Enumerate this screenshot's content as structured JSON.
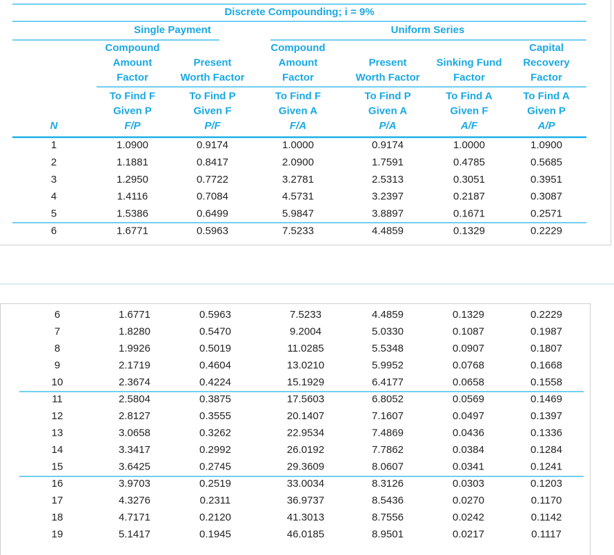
{
  "table": {
    "title": "Discrete Compounding; i = 9%",
    "groups": [
      "Single Payment",
      "Uniform Series"
    ],
    "n_label": "N",
    "columns": [
      {
        "name": [
          "Compound",
          "Amount",
          "Factor"
        ],
        "find": [
          "To Find F",
          "Given P"
        ],
        "symbol": "F/P"
      },
      {
        "name": [
          "Present",
          "Worth Factor"
        ],
        "find": [
          "To Find P",
          "Given F"
        ],
        "symbol": "P/F"
      },
      {
        "name": [
          "Compound",
          "Amount",
          "Factor"
        ],
        "find": [
          "To Find F",
          "Given A"
        ],
        "symbol": "F/A"
      },
      {
        "name": [
          "Present",
          "Worth Factor"
        ],
        "find": [
          "To Find P",
          "Given A"
        ],
        "symbol": "P/A"
      },
      {
        "name": [
          "Sinking Fund",
          "Factor"
        ],
        "find": [
          "To Find A",
          "Given F"
        ],
        "symbol": "A/F"
      },
      {
        "name": [
          "Capital",
          "Recovery",
          "Factor"
        ],
        "find": [
          "To Find A",
          "Given P"
        ],
        "symbol": "A/P"
      }
    ],
    "rows_top": [
      [
        "1",
        "1.0900",
        "0.9174",
        "1.0000",
        "0.9174",
        "1.0000",
        "1.0900"
      ],
      [
        "2",
        "1.1881",
        "0.8417",
        "2.0900",
        "1.7591",
        "0.4785",
        "0.5685"
      ],
      [
        "3",
        "1.2950",
        "0.7722",
        "3.2781",
        "2.5313",
        "0.3051",
        "0.3951"
      ],
      [
        "4",
        "1.4116",
        "0.7084",
        "4.5731",
        "3.2397",
        "0.2187",
        "0.3087"
      ],
      [
        "5",
        "1.5386",
        "0.6499",
        "5.9847",
        "3.8897",
        "0.1671",
        "0.2571"
      ],
      [
        "6",
        "1.6771",
        "0.5963",
        "7.5233",
        "4.4859",
        "0.1329",
        "0.2229"
      ]
    ],
    "rows_bottom": [
      [
        "6",
        "1.6771",
        "0.5963",
        "7.5233",
        "4.4859",
        "0.1329",
        "0.2229"
      ],
      [
        "7",
        "1.8280",
        "0.5470",
        "9.2004",
        "5.0330",
        "0.1087",
        "0.1987"
      ],
      [
        "8",
        "1.9926",
        "0.5019",
        "11.0285",
        "5.5348",
        "0.0907",
        "0.1807"
      ],
      [
        "9",
        "2.1719",
        "0.4604",
        "13.0210",
        "5.9952",
        "0.0768",
        "0.1668"
      ],
      [
        "10",
        "2.3674",
        "0.4224",
        "15.1929",
        "6.4177",
        "0.0658",
        "0.1558"
      ],
      [
        "11",
        "2.5804",
        "0.3875",
        "17.5603",
        "6.8052",
        "0.0569",
        "0.1469"
      ],
      [
        "12",
        "2.8127",
        "0.3555",
        "20.1407",
        "7.1607",
        "0.0497",
        "0.1397"
      ],
      [
        "13",
        "3.0658",
        "0.3262",
        "22.9534",
        "7.4869",
        "0.0436",
        "0.1336"
      ],
      [
        "14",
        "3.3417",
        "0.2992",
        "26.0192",
        "7.7862",
        "0.0384",
        "0.1284"
      ],
      [
        "15",
        "3.6425",
        "0.2745",
        "29.3609",
        "8.0607",
        "0.0341",
        "0.1241"
      ],
      [
        "16",
        "3.9703",
        "0.2519",
        "33.0034",
        "8.3126",
        "0.0303",
        "0.1203"
      ],
      [
        "17",
        "4.3276",
        "0.2311",
        "36.9737",
        "8.5436",
        "0.0270",
        "0.1170"
      ],
      [
        "18",
        "4.7171",
        "0.2120",
        "41.3013",
        "8.7556",
        "0.0242",
        "0.1142"
      ],
      [
        "19",
        "5.1417",
        "0.1945",
        "46.0185",
        "8.9501",
        "0.0217",
        "0.1117"
      ]
    ]
  }
}
